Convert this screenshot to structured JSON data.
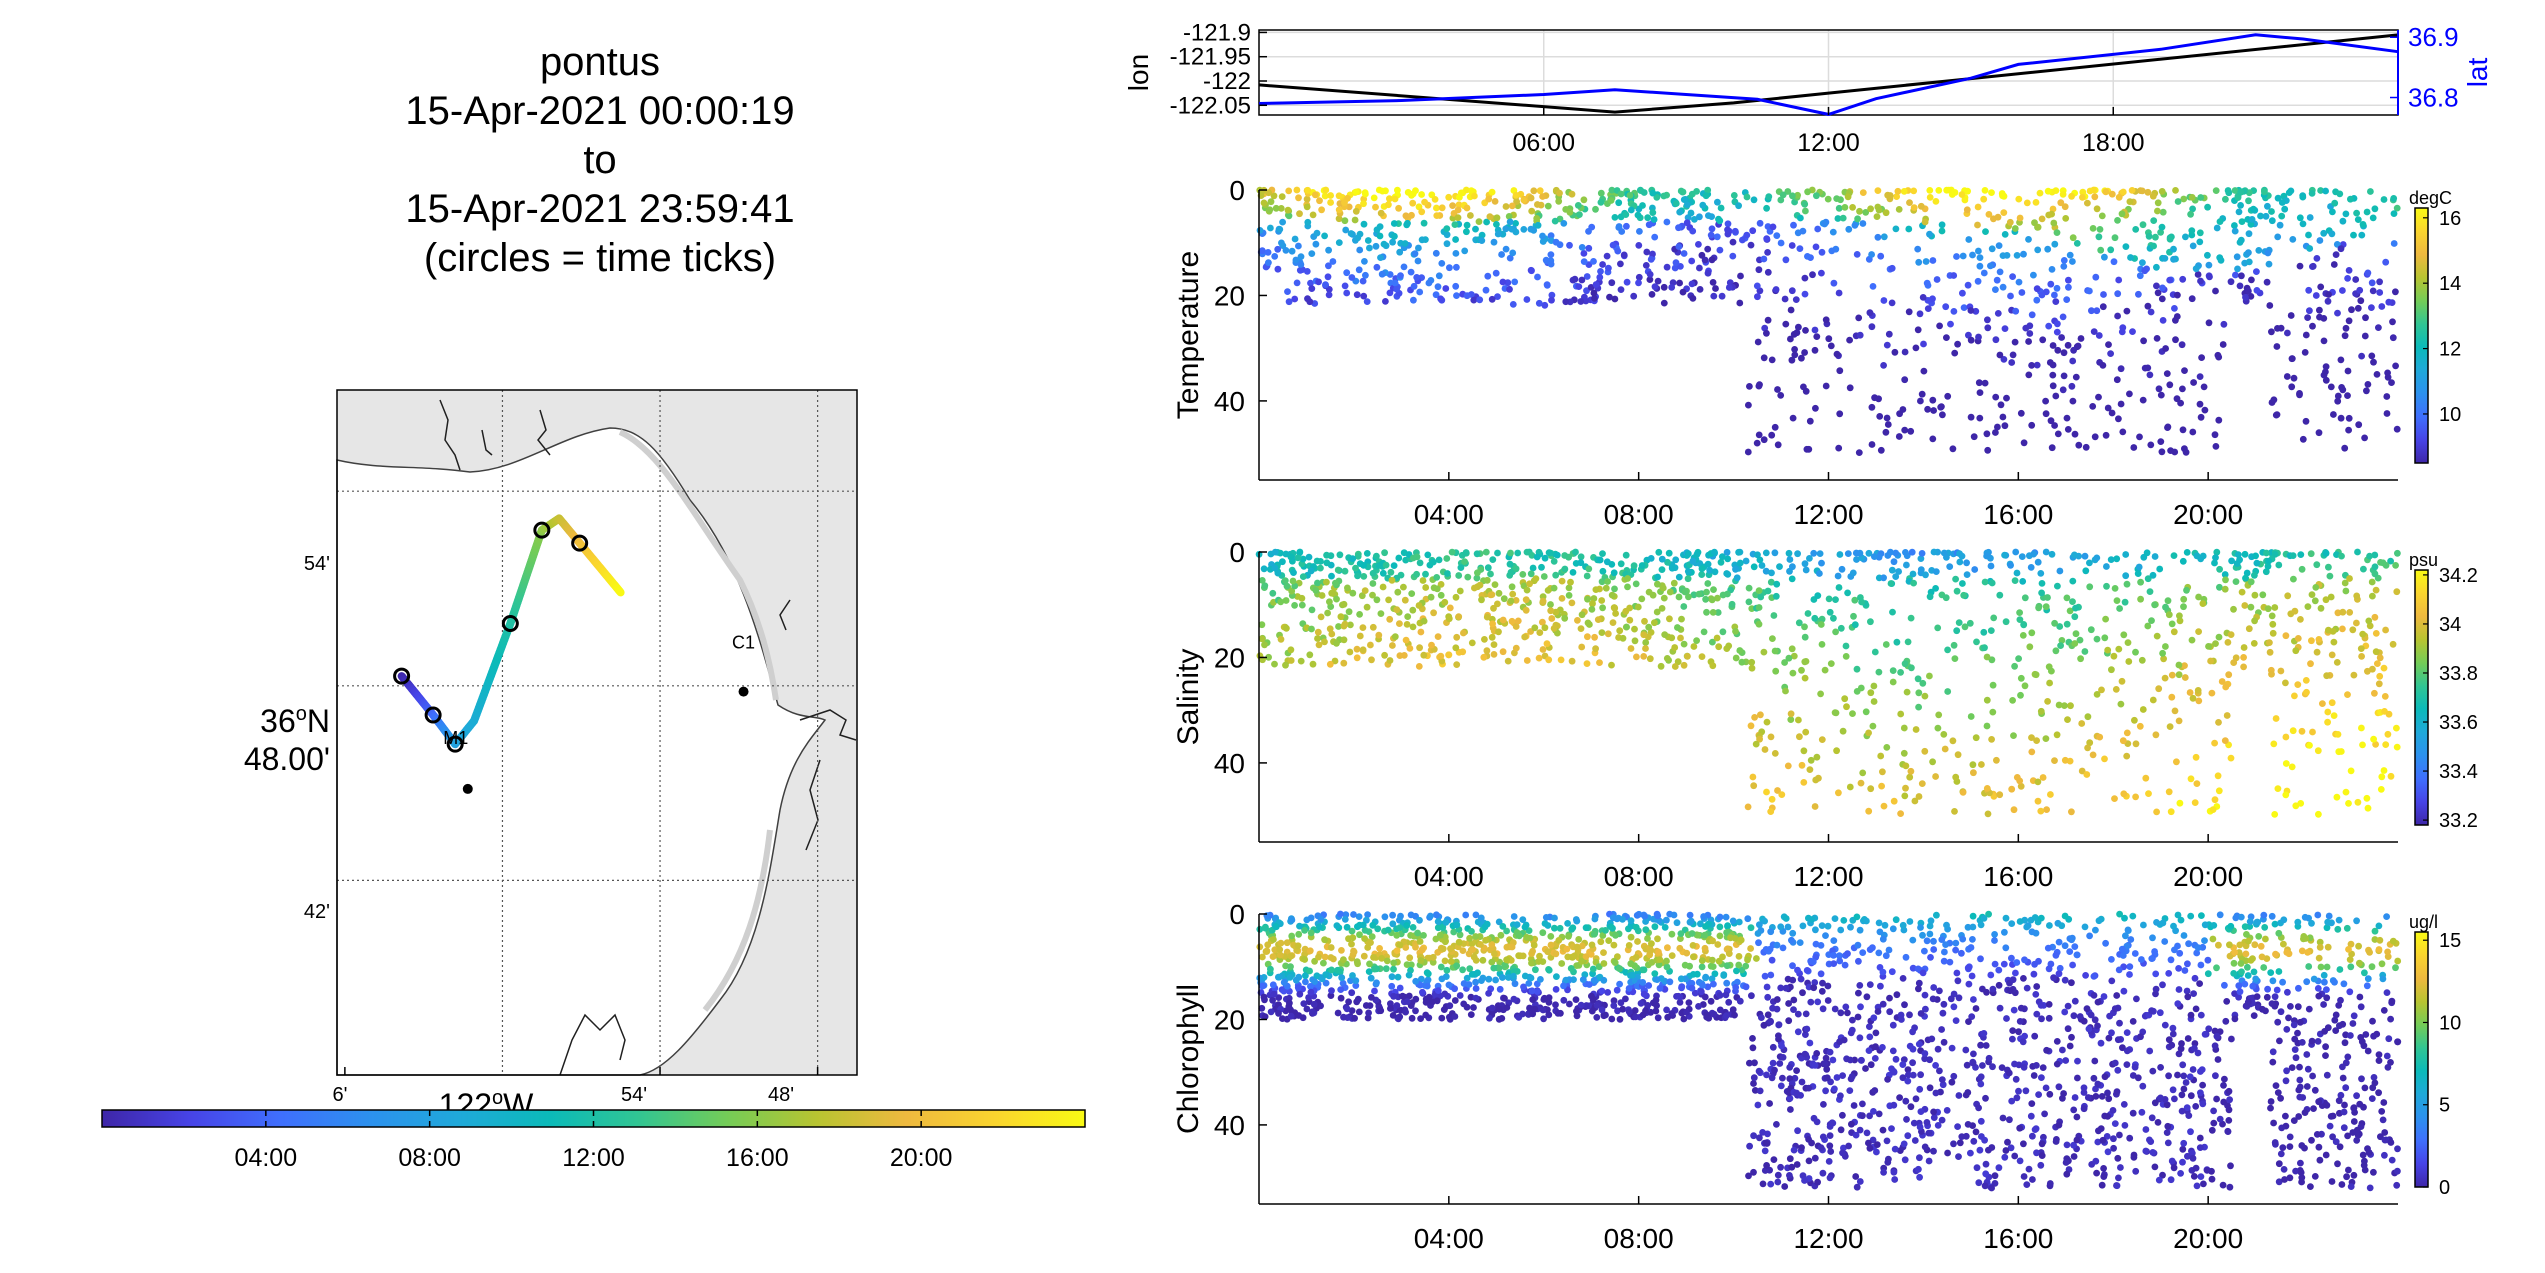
{
  "title": {
    "glider": "pontus",
    "start": "15-Apr-2021 00:00:19",
    "to": "to",
    "end": "15-Apr-2021 23:59:41",
    "note": "(circles = time ticks)"
  },
  "colormap": [
    "#3e26a8",
    "#4744e7",
    "#3f6ffd",
    "#2c91ee",
    "#1fa9d9",
    "#0bbab9",
    "#31c593",
    "#74cc57",
    "#b8c431",
    "#eeb93f",
    "#fad52e",
    "#f9fa14"
  ],
  "map": {
    "lat_labels": [
      "54'",
      "36°N 48.00'",
      "42'"
    ],
    "lat_label_main_deg": "36",
    "lat_label_main_suffix": "N",
    "lat_label_main_min": "48.00'",
    "lon_labels": [
      "6'",
      "54'",
      "48'"
    ],
    "lon_label_main_deg": "122",
    "lon_label_main_suffix": "W",
    "stations": [
      {
        "name": "C1",
        "lat": 36.797,
        "lon": -121.847
      },
      {
        "name": "M1",
        "lat": 36.747,
        "lon": -122.022
      }
    ],
    "time_ticks_hours": [
      0,
      4,
      8,
      12,
      16,
      20
    ],
    "track": [
      {
        "t": 0,
        "lat": 36.805,
        "lon": -122.064
      },
      {
        "t": 4,
        "lat": 36.785,
        "lon": -122.044
      },
      {
        "t": 8,
        "lat": 36.77,
        "lon": -122.03
      },
      {
        "t": 9,
        "lat": 36.782,
        "lon": -122.018
      },
      {
        "t": 12,
        "lat": 36.832,
        "lon": -121.995
      },
      {
        "t": 16,
        "lat": 36.88,
        "lon": -121.975
      },
      {
        "t": 18,
        "lat": 36.886,
        "lon": -121.964
      },
      {
        "t": 24,
        "lat": 36.848,
        "lon": -121.925
      }
    ],
    "time_colorbar_ticks": [
      "04:00",
      "08:00",
      "12:00",
      "16:00",
      "20:00"
    ]
  },
  "chart_data": [
    {
      "type": "line",
      "name": "position-timeseries",
      "xlabel": "",
      "x_ticks": [
        "06:00",
        "12:00",
        "18:00"
      ],
      "y_left_label": "lon",
      "y_left_ticks": [
        "-121.9",
        "-121.95",
        "-122",
        "-122.05"
      ],
      "y_left_lim": [
        -122.07,
        -121.895
      ],
      "y_right_label": "lat",
      "y_right_ticks": [
        "36.9",
        "36.8"
      ],
      "y_right_lim": [
        36.771,
        36.912
      ],
      "grid": true,
      "series": [
        {
          "name": "lon",
          "color": "#000000",
          "axis": "left",
          "points": [
            [
              0,
              -122.008
            ],
            [
              7.5,
              -122.064
            ],
            [
              10,
              -122.045
            ],
            [
              12,
              -122.025
            ],
            [
              15,
              -121.995
            ],
            [
              24,
              -121.905
            ]
          ]
        },
        {
          "name": "lat",
          "color": "#0000ff",
          "axis": "right",
          "points": [
            [
              0,
              36.79
            ],
            [
              3,
              36.795
            ],
            [
              6,
              36.805
            ],
            [
              7.5,
              36.813
            ],
            [
              9,
              36.805
            ],
            [
              10.5,
              36.797
            ],
            [
              12,
              36.772
            ],
            [
              13,
              36.798
            ],
            [
              15,
              36.832
            ],
            [
              16,
              36.855
            ],
            [
              19,
              36.88
            ],
            [
              21,
              36.904
            ],
            [
              22,
              36.897
            ],
            [
              24,
              36.876
            ]
          ]
        }
      ]
    },
    {
      "type": "scatter",
      "name": "temperature-section",
      "ylabel": "Temperature",
      "x_ticks": [
        "04:00",
        "08:00",
        "12:00",
        "16:00",
        "20:00"
      ],
      "y_ticks": [
        "0",
        "20",
        "40"
      ],
      "ylim": [
        0,
        55
      ],
      "y_reversed": true,
      "colorbar_unit": "degC",
      "colorbar_ticks": [
        "16",
        "14",
        "12",
        "10"
      ],
      "clim": [
        8.5,
        16.3
      ]
    },
    {
      "type": "scatter",
      "name": "salinity-section",
      "ylabel": "Salinity",
      "x_ticks": [
        "04:00",
        "08:00",
        "12:00",
        "16:00",
        "20:00"
      ],
      "y_ticks": [
        "0",
        "20",
        "40"
      ],
      "ylim": [
        0,
        55
      ],
      "y_reversed": true,
      "colorbar_unit": "psu",
      "colorbar_ticks": [
        "34.2",
        "34",
        "33.8",
        "33.6",
        "33.4",
        "33.2"
      ],
      "clim": [
        33.18,
        34.22
      ]
    },
    {
      "type": "scatter",
      "name": "chlorophyll-section",
      "ylabel": "Chlorophyll",
      "x_ticks": [
        "04:00",
        "08:00",
        "12:00",
        "16:00",
        "20:00"
      ],
      "y_ticks": [
        "0",
        "20",
        "40"
      ],
      "ylim": [
        0,
        55
      ],
      "y_reversed": true,
      "colorbar_unit": "ug/l",
      "colorbar_ticks": [
        "15",
        "10",
        "5",
        "0"
      ],
      "clim": [
        0,
        15.5
      ]
    }
  ]
}
